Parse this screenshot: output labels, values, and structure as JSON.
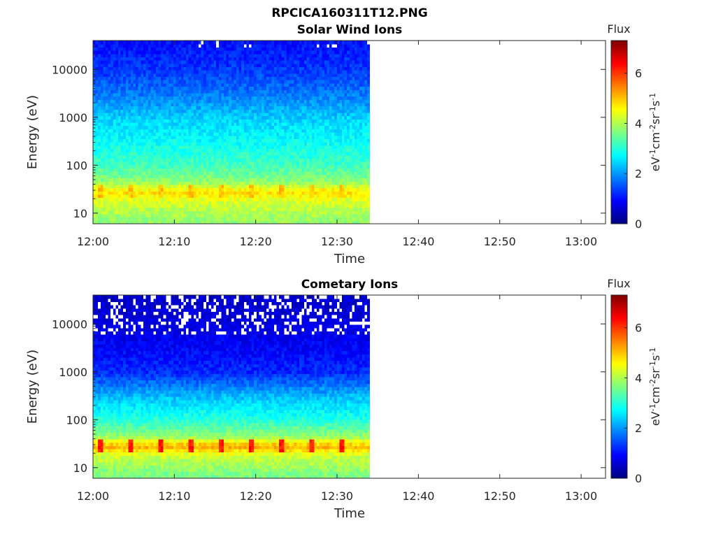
{
  "figure": {
    "title": "RPCICA160311T12.PNG"
  },
  "colormap_stops": [
    "#00007f",
    "#0000ff",
    "#007fff",
    "#00ffff",
    "#7fff7f",
    "#ffff00",
    "#ff7f00",
    "#ff0000",
    "#7f0000"
  ],
  "chart_data": [
    {
      "type": "heatmap",
      "title": "Solar Wind Ions",
      "xlabel": "Time",
      "ylabel": "Energy (eV)",
      "x_ticks": [
        "12:00",
        "12:10",
        "12:20",
        "12:30",
        "12:40",
        "12:50",
        "13:00"
      ],
      "x_range": [
        "12:00",
        "13:03"
      ],
      "data_end_time": "12:34",
      "y_scale": "log",
      "y_ticks": [
        "10",
        "100",
        "1000",
        "10000"
      ],
      "y_range": [
        6,
        40000
      ],
      "colorbar": {
        "label": "Flux",
        "unit_label": "eV-1cm-2sr-1s-1",
        "ticks": [
          "0",
          "2",
          "4",
          "6"
        ],
        "range": [
          0,
          7.3
        ]
      },
      "flux_profile": [
        {
          "energy": 7,
          "flux": 3.8
        },
        {
          "energy": 18,
          "flux": 4.3
        },
        {
          "energy": 28,
          "flux": 4.8
        },
        {
          "energy": 45,
          "flux": 3.8
        },
        {
          "energy": 100,
          "flux": 3.2
        },
        {
          "energy": 300,
          "flux": 2.8
        },
        {
          "energy": 1000,
          "flux": 2.4
        },
        {
          "energy": 3000,
          "flux": 1.8
        },
        {
          "energy": 10000,
          "flux": 1.3
        },
        {
          "energy": 40000,
          "flux": 1.0
        }
      ],
      "periodic_peak": {
        "energy": 28,
        "flux": 5.0
      }
    },
    {
      "type": "heatmap",
      "title": "Cometary Ions",
      "xlabel": "Time",
      "ylabel": "Energy (eV)",
      "x_ticks": [
        "12:00",
        "12:10",
        "12:20",
        "12:30",
        "12:40",
        "12:50",
        "13:00"
      ],
      "x_range": [
        "12:00",
        "13:03"
      ],
      "data_end_time": "12:34",
      "y_scale": "log",
      "y_ticks": [
        "10",
        "100",
        "1000",
        "10000"
      ],
      "y_range": [
        6,
        40000
      ],
      "colorbar": {
        "label": "Flux",
        "unit_label": "eV-1cm-2sr-1s-1",
        "ticks": [
          "0",
          "2",
          "4",
          "6"
        ],
        "range": [
          0,
          7.3
        ]
      },
      "flux_profile": [
        {
          "energy": 7,
          "flux": 3.6
        },
        {
          "energy": 18,
          "flux": 4.2
        },
        {
          "energy": 28,
          "flux": 5.2
        },
        {
          "energy": 45,
          "flux": 3.8
        },
        {
          "energy": 100,
          "flux": 3.0
        },
        {
          "energy": 300,
          "flux": 2.3
        },
        {
          "energy": 1000,
          "flux": 1.2
        },
        {
          "energy": 3000,
          "flux": 0.9
        },
        {
          "energy": 10000,
          "flux": 0.7
        },
        {
          "energy": 40000,
          "flux": 0.5
        }
      ],
      "periodic_peak": {
        "energy": 28,
        "flux": 6.2
      }
    }
  ]
}
